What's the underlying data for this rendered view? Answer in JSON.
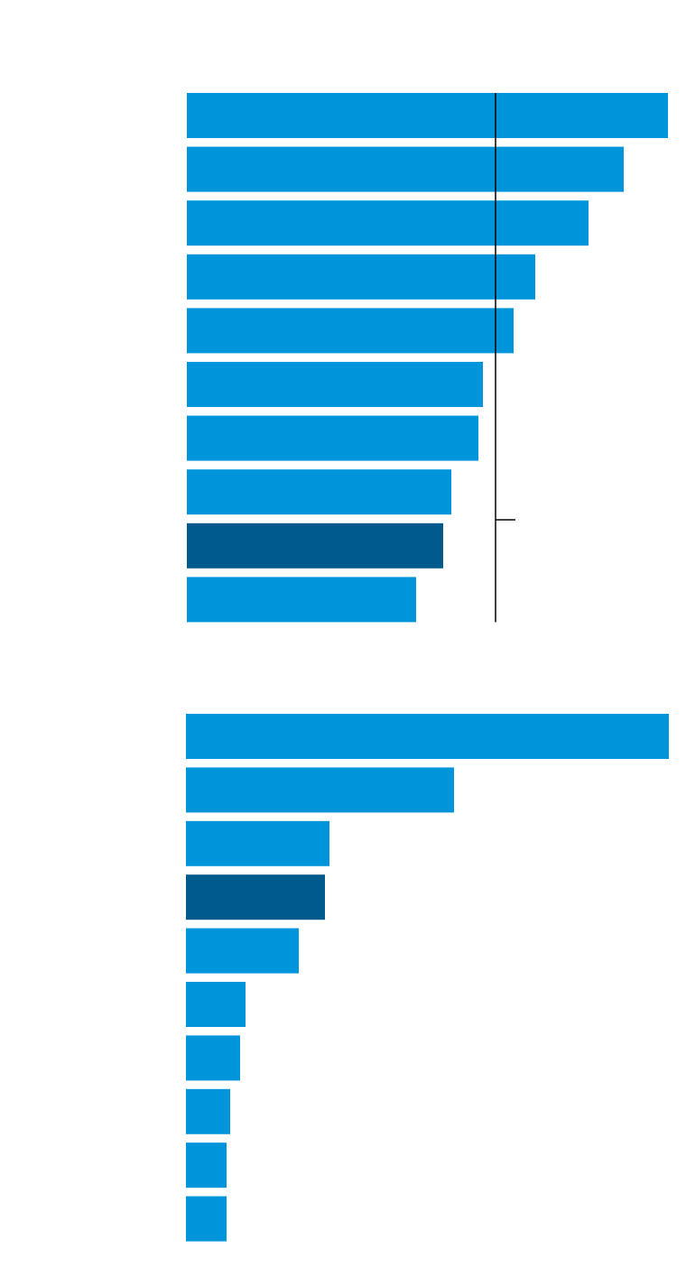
{
  "chart_data": [
    {
      "type": "bar",
      "orientation": "horizontal",
      "values": [
        533,
        484,
        445,
        386,
        362,
        328,
        323,
        293,
        284,
        254
      ],
      "xlim": [
        0,
        533
      ],
      "color": "#0095db",
      "highlight_color": "#005a8c",
      "highlight": 8,
      "reference": 342
    },
    {
      "type": "bar",
      "orientation": "horizontal",
      "values": [
        535,
        297,
        159,
        154,
        125,
        66,
        60,
        49,
        45,
        45
      ],
      "xlim": [
        0,
        535
      ],
      "color": "#0095db",
      "highlight_color": "#005a8c",
      "highlight": 3
    }
  ]
}
